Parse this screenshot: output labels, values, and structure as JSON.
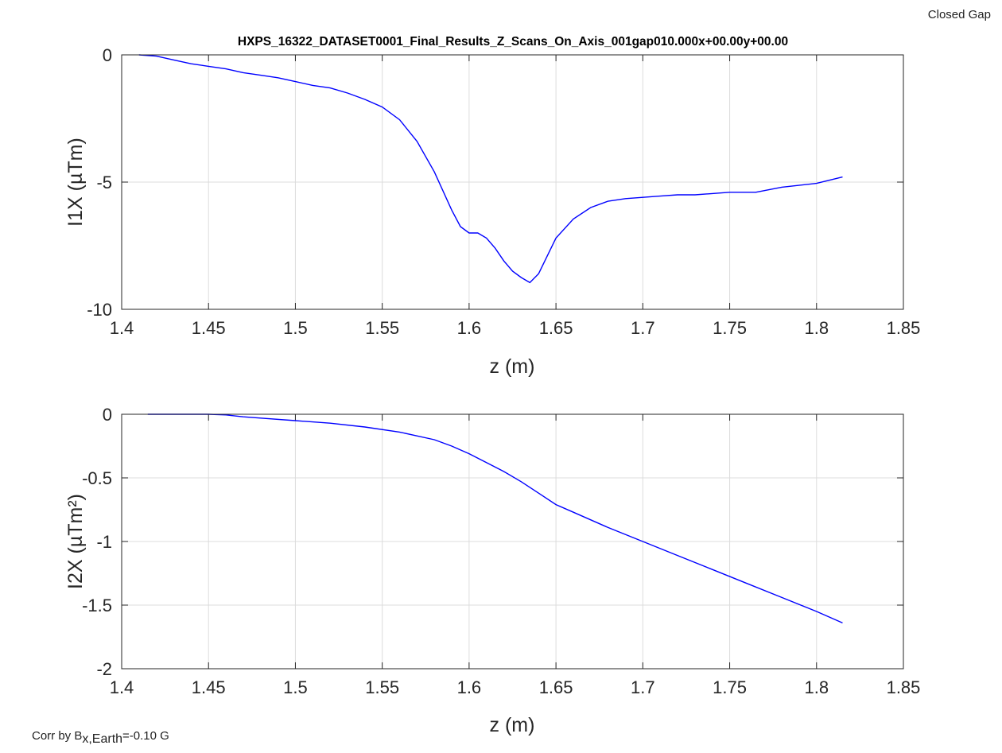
{
  "figure": {
    "note_top_right": "Closed Gap",
    "note_bottom_left_prefix": "Corr by B",
    "note_bottom_left_subscript": "x,Earth",
    "note_bottom_left_suffix": "=-0.10 G"
  },
  "colors": {
    "series": "#0000ff",
    "grid": "#dcdcdc",
    "axis": "#262626"
  },
  "chart_data": [
    {
      "type": "line",
      "title": "HXPS_16322_DATASET0001_Final_Results_Z_Scans_On_Axis_001gap010.000x+00.00y+00.00",
      "xlabel": "z (m)",
      "ylabel": "I1X (µTm)",
      "xlim": [
        1.4,
        1.85
      ],
      "ylim": [
        -10,
        0
      ],
      "xticks": [
        1.4,
        1.45,
        1.5,
        1.55,
        1.6,
        1.65,
        1.7,
        1.75,
        1.8,
        1.85
      ],
      "xtick_labels": [
        "1.4",
        "1.45",
        "1.5",
        "1.55",
        "1.6",
        "1.65",
        "1.7",
        "1.75",
        "1.8",
        "1.85"
      ],
      "yticks": [
        -10,
        -5,
        0
      ],
      "ytick_labels": [
        "-10",
        "-5",
        "0"
      ],
      "grid": true,
      "x": [
        1.41,
        1.42,
        1.43,
        1.44,
        1.45,
        1.46,
        1.47,
        1.48,
        1.49,
        1.5,
        1.51,
        1.52,
        1.53,
        1.54,
        1.55,
        1.56,
        1.57,
        1.58,
        1.59,
        1.595,
        1.6,
        1.605,
        1.61,
        1.615,
        1.62,
        1.625,
        1.63,
        1.635,
        1.64,
        1.645,
        1.65,
        1.66,
        1.67,
        1.68,
        1.69,
        1.7,
        1.71,
        1.72,
        1.73,
        1.74,
        1.75,
        1.765,
        1.78,
        1.8,
        1.815
      ],
      "y": [
        0.0,
        -0.05,
        -0.2,
        -0.35,
        -0.45,
        -0.55,
        -0.7,
        -0.8,
        -0.9,
        -1.05,
        -1.2,
        -1.3,
        -1.5,
        -1.75,
        -2.05,
        -2.55,
        -3.4,
        -4.6,
        -6.1,
        -6.75,
        -7.0,
        -7.0,
        -7.2,
        -7.6,
        -8.1,
        -8.5,
        -8.75,
        -8.95,
        -8.6,
        -7.9,
        -7.2,
        -6.45,
        -6.0,
        -5.75,
        -5.65,
        -5.6,
        -5.55,
        -5.5,
        -5.5,
        -5.45,
        -5.4,
        -5.4,
        -5.2,
        -5.05,
        -4.8
      ]
    },
    {
      "type": "line",
      "title": "",
      "xlabel": "z (m)",
      "ylabel": "I2X (µTm²)",
      "xlim": [
        1.4,
        1.85
      ],
      "ylim": [
        -2,
        0
      ],
      "xticks": [
        1.4,
        1.45,
        1.5,
        1.55,
        1.6,
        1.65,
        1.7,
        1.75,
        1.8,
        1.85
      ],
      "xtick_labels": [
        "1.4",
        "1.45",
        "1.5",
        "1.55",
        "1.6",
        "1.65",
        "1.7",
        "1.75",
        "1.8",
        "1.85"
      ],
      "yticks": [
        -2,
        -1.5,
        -1,
        -0.5,
        0
      ],
      "ytick_labels": [
        "-2",
        "-1.5",
        "-1",
        "-0.5",
        "0"
      ],
      "grid": true,
      "x": [
        1.415,
        1.43,
        1.45,
        1.46,
        1.47,
        1.48,
        1.5,
        1.52,
        1.54,
        1.56,
        1.58,
        1.59,
        1.6,
        1.61,
        1.62,
        1.63,
        1.64,
        1.65,
        1.66,
        1.68,
        1.7,
        1.72,
        1.74,
        1.76,
        1.78,
        1.8,
        1.815
      ],
      "y": [
        0.0,
        0.0,
        0.0,
        -0.005,
        -0.02,
        -0.03,
        -0.05,
        -0.07,
        -0.1,
        -0.14,
        -0.2,
        -0.25,
        -0.31,
        -0.38,
        -0.45,
        -0.53,
        -0.62,
        -0.71,
        -0.77,
        -0.89,
        -1.0,
        -1.11,
        -1.22,
        -1.33,
        -1.44,
        -1.55,
        -1.64
      ]
    }
  ]
}
